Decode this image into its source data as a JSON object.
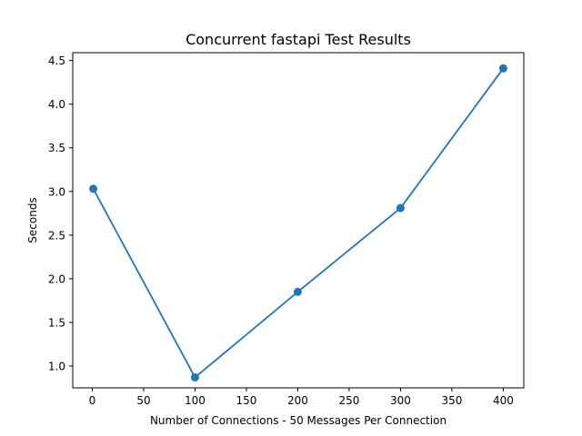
{
  "chart_data": {
    "type": "line",
    "title": "Concurrent fastapi Test Results",
    "xlabel": "Number of Connections - 50 Messages Per Connection",
    "ylabel": "Seconds",
    "x": [
      1,
      100,
      200,
      300,
      400
    ],
    "series": [
      {
        "values": [
          3.03,
          0.87,
          1.85,
          2.81,
          4.41
        ]
      }
    ],
    "xlim": [
      -19,
      420
    ],
    "ylim": [
      0.75,
      4.59
    ],
    "xticks": [
      0,
      50,
      100,
      150,
      200,
      250,
      300,
      350,
      400
    ],
    "yticks": [
      1.0,
      1.5,
      2.0,
      2.5,
      3.0,
      3.5,
      4.0,
      4.5
    ],
    "xtick_labels": [
      "0",
      "50",
      "100",
      "150",
      "200",
      "250",
      "300",
      "350",
      "400"
    ],
    "ytick_labels": [
      "1.0",
      "1.5",
      "2.0",
      "2.5",
      "3.0",
      "3.5",
      "4.0",
      "4.5"
    ],
    "grid": false,
    "legend": "none",
    "color": "#1f77b4"
  }
}
